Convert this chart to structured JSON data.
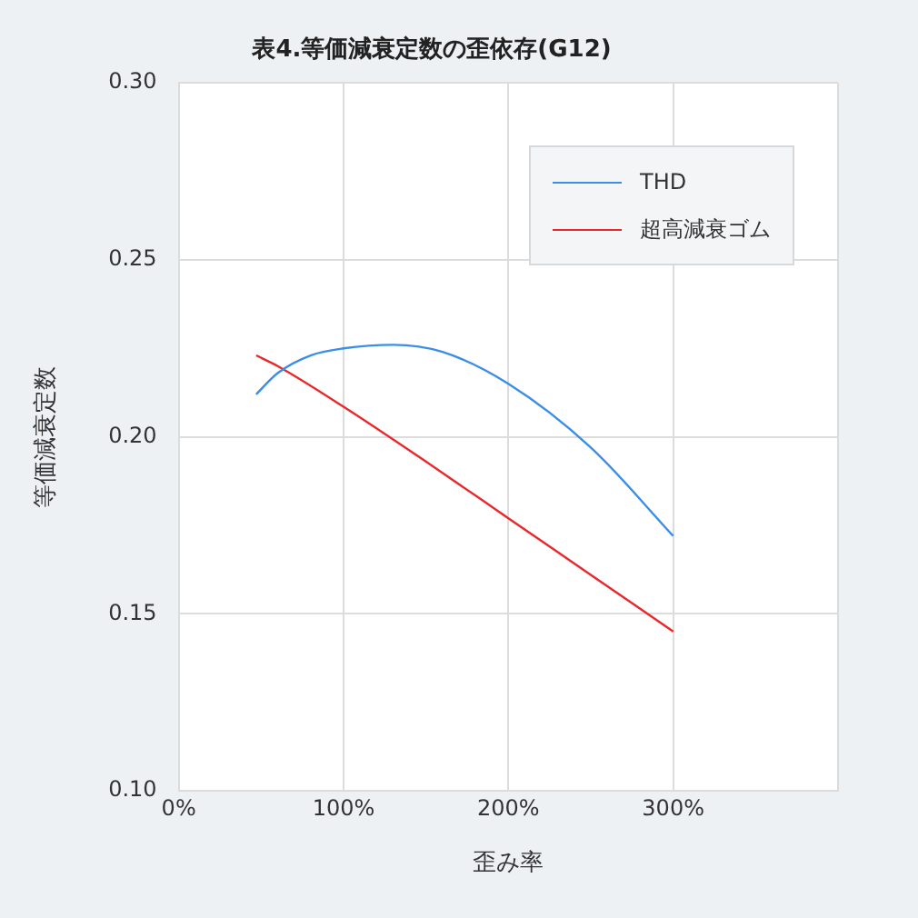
{
  "chart_data": {
    "type": "line",
    "title": "表4.等価減衰定数の歪依存(G12)",
    "xlabel": "歪み率",
    "ylabel": "等価減衰定数",
    "xlim": [
      0,
      400
    ],
    "xticks": [
      {
        "value": 0,
        "label": "0%"
      },
      {
        "value": 100,
        "label": "100%"
      },
      {
        "value": 200,
        "label": "200%"
      },
      {
        "value": 300,
        "label": "300%"
      },
      {
        "value": 400,
        "label": null
      }
    ],
    "ylim": [
      0.1,
      0.3
    ],
    "yticks": [
      {
        "value": 0.1,
        "label": "0.10"
      },
      0.15,
      {
        "value": 0.2,
        "label": "0.20"
      },
      0.25,
      {
        "value": 0.3,
        "label": "0.30"
      }
    ],
    "grid": true,
    "legend": "top right",
    "marker": "none",
    "line_style": "solid",
    "series": [
      {
        "name": "THD",
        "color": "#3b8ee8",
        "x": [
          47,
          60,
          80,
          100,
          130,
          160,
          200,
          250,
          300
        ],
        "values": [
          0.212,
          0.218,
          0.223,
          0.225,
          0.226,
          0.224,
          0.215,
          0.197,
          0.172
        ]
      },
      {
        "name": "超高減衰ゴム",
        "color": "#e8282b",
        "x": [
          47,
          60,
          100,
          150,
          200,
          250,
          300
        ],
        "values": [
          0.223,
          0.22,
          0.2085,
          0.193,
          0.177,
          0.161,
          0.145
        ]
      }
    ]
  }
}
